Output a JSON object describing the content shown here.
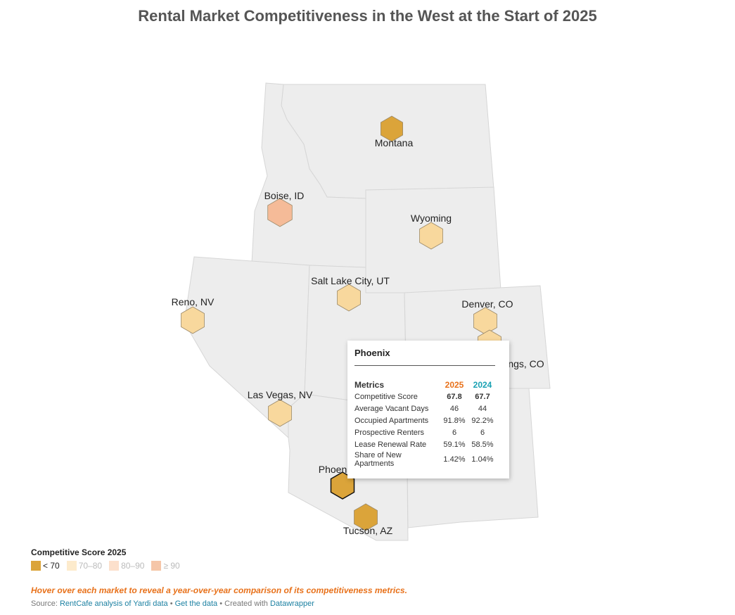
{
  "title": "Rental Market Competitiveness in the West at the Start of 2025",
  "markets": [
    {
      "name": "Montana",
      "label": "Montana",
      "score_bucket": "<70"
    },
    {
      "name": "Boise",
      "label": "Boise, ID",
      "score_bucket": ">=90"
    },
    {
      "name": "Wyoming",
      "label": "Wyoming",
      "score_bucket": "70-80"
    },
    {
      "name": "Salt Lake City",
      "label": "Salt Lake City, UT",
      "score_bucket": "70-80"
    },
    {
      "name": "Reno",
      "label": "Reno, NV",
      "score_bucket": "70-80"
    },
    {
      "name": "Denver",
      "label": "Denver, CO",
      "score_bucket": "70-80"
    },
    {
      "name": "Colorado Springs",
      "label": "ngs, CO",
      "score_bucket": "70-80"
    },
    {
      "name": "Las Vegas",
      "label": "Las Vegas, NV",
      "score_bucket": "70-80"
    },
    {
      "name": "Phoenix",
      "label": "Phoen",
      "score_bucket": "<70"
    },
    {
      "name": "Tucson",
      "label": "Tucson, AZ",
      "score_bucket": "<70"
    }
  ],
  "tooltip": {
    "market": "Phoenix",
    "header": {
      "metrics": "Metrics",
      "y2025": "2025",
      "y2024": "2024"
    },
    "rows": [
      {
        "label": "Competitive Score",
        "v2025": "67.8",
        "v2024": "67.7"
      },
      {
        "label": "Average Vacant Days",
        "v2025": "46",
        "v2024": "44"
      },
      {
        "label": "Occupied Apartments",
        "v2025": "91.8%",
        "v2024": "92.2%"
      },
      {
        "label": "Prospective Renters",
        "v2025": "6",
        "v2024": "6"
      },
      {
        "label": "Lease Renewal Rate",
        "v2025": "59.1%",
        "v2024": "58.5%"
      },
      {
        "label": "Share of New Apartments",
        "v2025": "1.42%",
        "v2024": "1.04%"
      }
    ]
  },
  "legend": {
    "title": "Competitive Score 2025",
    "items": [
      {
        "label": "< 70",
        "color": "#dba43a"
      },
      {
        "label": "70–80",
        "color": "#fdebcc"
      },
      {
        "label": "80–90",
        "color": "#fce0cc"
      },
      {
        "label": "≥ 90",
        "color": "#f5c6a8"
      }
    ]
  },
  "note": "Hover over each market to reveal a year-over-year comparison of its competitiveness metrics.",
  "source": {
    "prefix": "Source: ",
    "analysis": "RentCafe analysis of Yardi data",
    "sep1": " • ",
    "get_data": "Get the data",
    "sep2": " • Created with ",
    "tool": "Datawrapper"
  },
  "colors": {
    "lt70": "#dba43a",
    "r70_80": "#f8d89d",
    "gte90": "#f5bb98"
  }
}
